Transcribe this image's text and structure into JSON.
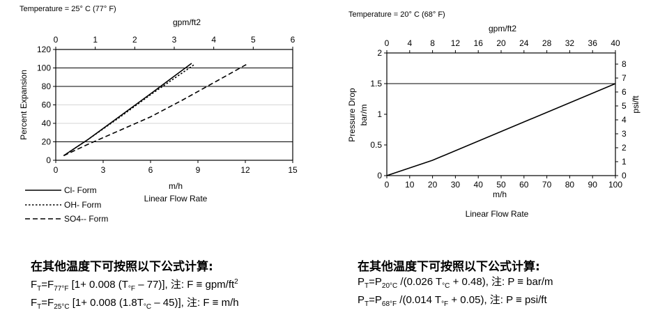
{
  "chart_data": [
    {
      "type": "line",
      "title": "Temperature = 25° C (77° F)",
      "xlabel": "m/h",
      "xlabel2": "Linear Flow Rate",
      "ylabel": "Percent Expansion",
      "top_axis_label": "gpm/ft2",
      "xlim": [
        0,
        15
      ],
      "ylim": [
        0,
        120
      ],
      "top_xlim": [
        0,
        6
      ],
      "xticks": [
        "0",
        "3",
        "6",
        "9",
        "12",
        "15"
      ],
      "yticks": [
        "0",
        "20",
        "40",
        "60",
        "80",
        "100",
        "120"
      ],
      "top_xticks": [
        "0",
        "1",
        "2",
        "3",
        "4",
        "5",
        "6"
      ],
      "grid_y": [
        20,
        80,
        100
      ],
      "series": [
        {
          "name": "Cl- Form",
          "style": "solid",
          "x": [
            0.5,
            2,
            4,
            6,
            8.6
          ],
          "y": [
            5,
            22,
            47,
            72,
            105
          ]
        },
        {
          "name": "OH- Form",
          "style": "dotted",
          "x": [
            0.5,
            2,
            4,
            6,
            8.8
          ],
          "y": [
            5,
            22,
            46,
            71,
            104
          ]
        },
        {
          "name": "SO4-- Form",
          "style": "dashed",
          "x": [
            0.5,
            2,
            4,
            6,
            8,
            10,
            12.2
          ],
          "y": [
            5,
            17,
            32,
            47,
            65,
            84,
            105
          ]
        }
      ],
      "legend_position": "bottom-left"
    },
    {
      "type": "line",
      "title": "Temperature = 20° C (68° F)",
      "xlabel": "m/h",
      "xlabel2": "Linear Flow Rate",
      "ylabel": "Pressure Drop",
      "ylabel_unit": "bar/m",
      "y2label": "psi/ft",
      "top_axis_label": "gpm/ft2",
      "xlim": [
        0,
        100
      ],
      "ylim": [
        0,
        2
      ],
      "y2lim": [
        0,
        8.8
      ],
      "top_xlim": [
        0,
        40
      ],
      "xticks": [
        "0",
        "10",
        "20",
        "30",
        "40",
        "50",
        "60",
        "70",
        "80",
        "90",
        "100"
      ],
      "yticks": [
        "0",
        "0.5",
        "1",
        "1.5",
        "2"
      ],
      "y2ticks": [
        "0",
        "1",
        "2",
        "3",
        "4",
        "5",
        "6",
        "7",
        "8"
      ],
      "top_xticks": [
        "0",
        "4",
        "8",
        "12",
        "16",
        "20",
        "24",
        "28",
        "32",
        "36",
        "40"
      ],
      "grid_y": [
        1.5
      ],
      "series": [
        {
          "x": [
            0,
            20,
            100
          ],
          "y": [
            0,
            0.25,
            1.5
          ]
        }
      ]
    }
  ],
  "formulas": {
    "left": {
      "heading": "在其他温度下可按照以下公式计算:",
      "line1": {
        "a": "F",
        "a_sub": "T",
        "b": "=F",
        "b_sub": "77°F",
        "c": " [1+ 0.008 (T",
        "c_sub": "°F",
        "d": " – 77)], 注: F ≡ gpm/ft",
        "d_sup": "2"
      },
      "line2": {
        "a": "F",
        "a_sub": "T",
        "b": "=F",
        "b_sub": "25°C",
        "c": " [1+ 0.008 (1.8T",
        "c_sub": "°C",
        "d": " – 45)], 注: F ≡ m/h"
      }
    },
    "right": {
      "heading": "在其他温度下可按照以下公式计算:",
      "line1": {
        "a": "P",
        "a_sub": "T",
        "b": "=P",
        "b_sub": "20°C",
        "c": " /(0.026 T",
        "c_sub": "°C",
        "d": " + 0.48), 注: P ≡ bar/m"
      },
      "line2": {
        "a": "P",
        "a_sub": "T",
        "b": "=P",
        "b_sub": "68°F",
        "c": " /(0.014 T",
        "c_sub": "°F",
        "d": " + 0.05), 注: P ≡ psi/ft"
      }
    }
  }
}
